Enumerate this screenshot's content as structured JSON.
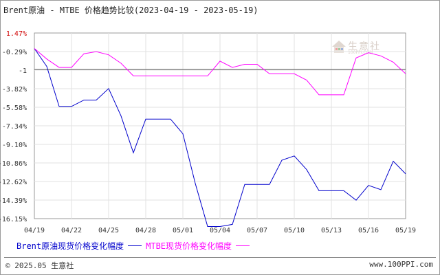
{
  "title": "Brent原油 - MTBE 价格趋势比较(2023-04-19 - 2023-05-19)",
  "watermark": {
    "text": "生意社",
    "sub": "100PPI.COM",
    "icon": "house-logo-icon"
  },
  "footer": {
    "copyright": "© 2025.05 生意社",
    "site": "www.100PPI.com"
  },
  "chart_data": {
    "type": "line",
    "title": "Brent原油 - MTBE 价格趋势比较(2023-04-19 - 2023-05-19)",
    "y_tick_labels": [
      "1.47%",
      "-0.29%",
      "-1",
      "-3.82%",
      "-5.58%",
      "-7.34%",
      "-9.10%",
      "-10.86%",
      "-12.62%",
      "-14.39%",
      "-16.15%"
    ],
    "ylim": [
      -16.15,
      1.47
    ],
    "reference_line": -2.0,
    "x_tick_labels": [
      "04/19",
      "04/22",
      "04/25",
      "04/28",
      "05/01",
      "05/04",
      "05/07",
      "05/10",
      "05/13",
      "05/16",
      "05/19"
    ],
    "x_range_days": [
      0,
      30
    ],
    "grid": true,
    "legend_position": "bottom",
    "series": [
      {
        "name": "Brent原油现货价格变化幅度",
        "color": "#0000cc",
        "points": [
          [
            0,
            0
          ],
          [
            1,
            -1.7
          ],
          [
            2,
            -5.5
          ],
          [
            3,
            -5.5
          ],
          [
            4,
            -4.9
          ],
          [
            5,
            -4.9
          ],
          [
            6,
            -3.8
          ],
          [
            7,
            -6.4
          ],
          [
            8,
            -9.9
          ],
          [
            9,
            -6.7
          ],
          [
            10,
            -6.7
          ],
          [
            11,
            -6.7
          ],
          [
            12,
            -8.1
          ],
          [
            13,
            -12.8
          ],
          [
            14,
            -16.9
          ],
          [
            15,
            -16.9
          ],
          [
            16,
            -16.7
          ],
          [
            17,
            -12.9
          ],
          [
            18,
            -12.9
          ],
          [
            19,
            -12.9
          ],
          [
            20,
            -10.6
          ],
          [
            21,
            -10.2
          ],
          [
            22,
            -11.5
          ],
          [
            23,
            -13.5
          ],
          [
            24,
            -13.5
          ],
          [
            25,
            -13.5
          ],
          [
            26,
            -14.4
          ],
          [
            27,
            -13.0
          ],
          [
            28,
            -13.4
          ],
          [
            29,
            -10.7
          ],
          [
            30,
            -11.9
          ]
        ]
      },
      {
        "name": "MTBE现货价格变化幅度",
        "color": "#ff00ff",
        "points": [
          [
            0,
            0
          ],
          [
            1,
            -1.0
          ],
          [
            2,
            -1.8
          ],
          [
            3,
            -1.8
          ],
          [
            4,
            -0.5
          ],
          [
            5,
            -0.3
          ],
          [
            6,
            -0.6
          ],
          [
            7,
            -1.4
          ],
          [
            8,
            -2.6
          ],
          [
            9,
            -2.6
          ],
          [
            10,
            -2.6
          ],
          [
            11,
            -2.6
          ],
          [
            12,
            -2.6
          ],
          [
            13,
            -2.6
          ],
          [
            14,
            -2.6
          ],
          [
            15,
            -1.2
          ],
          [
            16,
            -1.8
          ],
          [
            17,
            -1.5
          ],
          [
            18,
            -1.5
          ],
          [
            19,
            -2.4
          ],
          [
            20,
            -2.4
          ],
          [
            21,
            -2.4
          ],
          [
            22,
            -3.0
          ],
          [
            23,
            -4.4
          ],
          [
            24,
            -4.4
          ],
          [
            25,
            -4.4
          ],
          [
            26,
            -0.9
          ],
          [
            27,
            -0.4
          ],
          [
            28,
            -0.7
          ],
          [
            29,
            -1.3
          ],
          [
            30,
            -2.4
          ]
        ]
      }
    ]
  }
}
